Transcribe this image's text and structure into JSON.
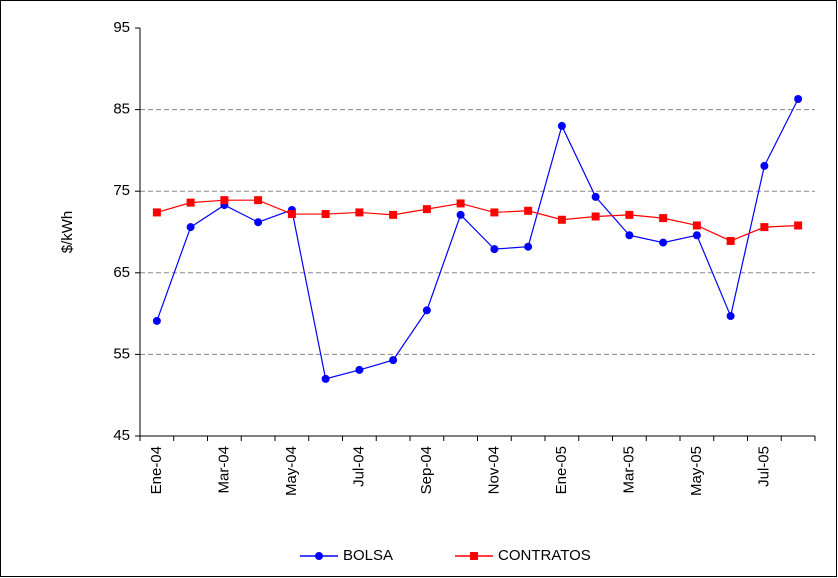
{
  "chart_data": {
    "type": "line",
    "y_label": "$/kWh",
    "categories": [
      "Ene-04",
      null,
      "Mar-04",
      null,
      "May-04",
      null,
      "Jul-04",
      null,
      "Sep-04",
      null,
      "Nov-04",
      null,
      "Ene-05",
      null,
      "Mar-05",
      null,
      "May-05",
      null,
      "Jul-05",
      null
    ],
    "series": [
      {
        "name": "BOLSA",
        "color": "#0000ff",
        "marker": "circle",
        "values": [
          59.1,
          70.6,
          73.3,
          71.2,
          72.7,
          52.0,
          53.1,
          54.3,
          60.4,
          72.1,
          67.9,
          68.2,
          83.0,
          74.3,
          69.6,
          68.7,
          69.6,
          59.7,
          78.1,
          86.3
        ]
      },
      {
        "name": "CONTRATOS",
        "color": "#ff0000",
        "marker": "square",
        "values": [
          72.4,
          73.6,
          73.9,
          73.9,
          72.2,
          72.2,
          72.4,
          72.1,
          72.8,
          73.5,
          72.4,
          72.6,
          71.5,
          71.9,
          72.1,
          71.7,
          70.8,
          68.9,
          70.6,
          70.8
        ]
      }
    ],
    "ylim": [
      45,
      95
    ],
    "yticks": [
      45,
      55,
      65,
      75,
      85,
      95
    ],
    "grid": true,
    "legend": "bottom"
  }
}
